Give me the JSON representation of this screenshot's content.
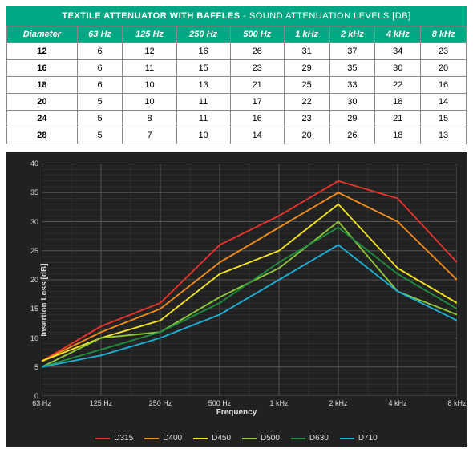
{
  "title": {
    "main": "TEXTILE ATTENUATOR WITH BAFFLES",
    "sub": " - SOUND ATTENUATION LEVELS [DB]"
  },
  "table": {
    "columns": [
      "Diameter",
      "63 Hz",
      "125 Hz",
      "250 Hz",
      "500 Hz",
      "1 kHz",
      "2 kHz",
      "4 kHz",
      "8 kHz"
    ],
    "rows": [
      [
        "12",
        "6",
        "12",
        "16",
        "26",
        "31",
        "37",
        "34",
        "23"
      ],
      [
        "16",
        "6",
        "11",
        "15",
        "23",
        "29",
        "35",
        "30",
        "20"
      ],
      [
        "18",
        "6",
        "10",
        "13",
        "21",
        "25",
        "33",
        "22",
        "16"
      ],
      [
        "20",
        "5",
        "10",
        "11",
        "17",
        "22",
        "30",
        "18",
        "14"
      ],
      [
        "24",
        "5",
        "8",
        "11",
        "16",
        "23",
        "29",
        "21",
        "15"
      ],
      [
        "28",
        "5",
        "7",
        "10",
        "14",
        "20",
        "26",
        "18",
        "13"
      ]
    ]
  },
  "chart": {
    "type": "line",
    "background": "#212121",
    "grid_color": "#555555",
    "grid_minor_color": "#3a3a3a",
    "text_color": "#dddddd",
    "x_label": "Frequency",
    "y_label": "Insertion Loss [dB]",
    "x_categories": [
      "63 Hz",
      "125 Hz",
      "250 Hz",
      "500 Hz",
      "1 kHz",
      "2 kHz",
      "4 kHz",
      "8 kHz"
    ],
    "ylim": [
      0,
      40
    ],
    "ytick_step": 5,
    "line_width": 1.8,
    "series": [
      {
        "name": "D315",
        "color": "#e8332a",
        "values": [
          6,
          12,
          16,
          26,
          31,
          37,
          34,
          23
        ]
      },
      {
        "name": "D400",
        "color": "#f28c1a",
        "values": [
          6,
          11,
          15,
          23,
          29,
          35,
          30,
          20
        ]
      },
      {
        "name": "D450",
        "color": "#f6e51e",
        "values": [
          6,
          10,
          13,
          21,
          25,
          33,
          22,
          16
        ]
      },
      {
        "name": "D500",
        "color": "#8fc93a",
        "values": [
          5,
          10,
          11,
          17,
          22,
          30,
          18,
          14
        ]
      },
      {
        "name": "D630",
        "color": "#1e8e3e",
        "values": [
          5,
          8,
          11,
          16,
          23,
          29,
          21,
          15
        ]
      },
      {
        "name": "D710",
        "color": "#1ab0d8",
        "values": [
          5,
          7,
          10,
          14,
          20,
          26,
          18,
          13
        ]
      }
    ]
  }
}
